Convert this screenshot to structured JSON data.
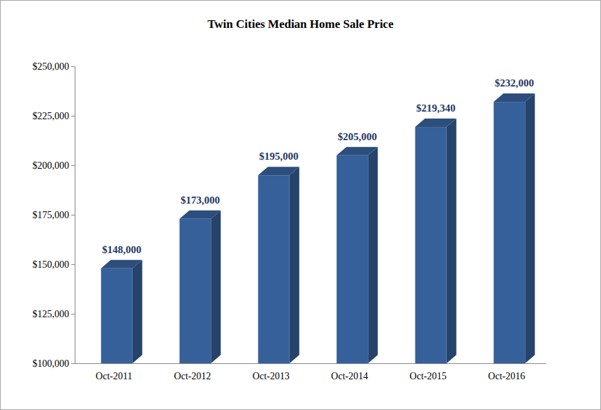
{
  "chart_data": {
    "type": "bar",
    "title": "Twin Cities Median Home Sale Price",
    "categories": [
      "Oct-2011",
      "Oct-2012",
      "Oct-2013",
      "Oct-2014",
      "Oct-2015",
      "Oct-2016"
    ],
    "values": [
      148000,
      173000,
      195000,
      205000,
      219340,
      232000
    ],
    "value_labels": [
      "$148,000",
      "$173,000",
      "$195,000",
      "$205,000",
      "$219,340",
      "$232,000"
    ],
    "color": "#36609a",
    "ylim": [
      100000,
      250000
    ],
    "yticks": [
      {
        "value": 100000,
        "label": "$100,000"
      },
      {
        "value": 125000,
        "label": "$125,000"
      },
      {
        "value": 150000,
        "label": "$150,000"
      },
      {
        "value": 175000,
        "label": "$175,000"
      },
      {
        "value": 200000,
        "label": "$200,000"
      },
      {
        "value": 225000,
        "label": "$225,000"
      },
      {
        "value": 250000,
        "label": "$250,000"
      }
    ],
    "grid": false,
    "data_labels": true
  }
}
